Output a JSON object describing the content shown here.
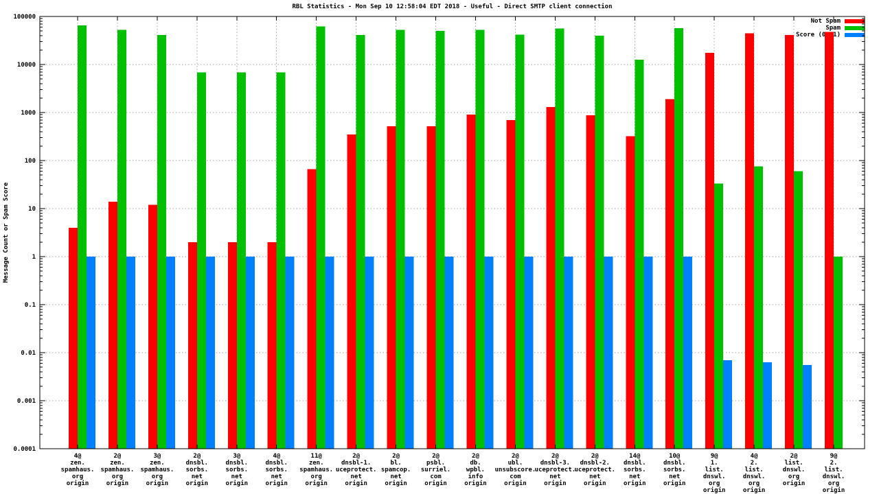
{
  "chart_data": {
    "type": "bar",
    "title": "RBL Statistics - Mon Sep 10 12:58:04 EDT 2018 - Useful - Direct SMTP client connection",
    "xlabel": "",
    "ylabel": "Message Count or Spam Score",
    "yscale": "log",
    "ylim": [
      0.0001,
      100000
    ],
    "ytick_labels": [
      "100000",
      "10000",
      "1000",
      "100",
      "10",
      "1",
      "0.1",
      "0.01",
      "0.001",
      "0.0001"
    ],
    "grid": true,
    "grid_style": "dotted",
    "legend_position": "top-right-inside",
    "categories": [
      [
        "4@",
        "zen.",
        "spamhaus.",
        "org",
        "origin"
      ],
      [
        "2@",
        "zen.",
        "spamhaus.",
        "org",
        "origin"
      ],
      [
        "3@",
        "zen.",
        "spamhaus.",
        "org",
        "origin"
      ],
      [
        "2@",
        "dnsbl.",
        "sorbs.",
        "net",
        "origin"
      ],
      [
        "3@",
        "dnsbl.",
        "sorbs.",
        "net",
        "origin"
      ],
      [
        "4@",
        "dnsbl.",
        "sorbs.",
        "net",
        "origin"
      ],
      [
        "11@",
        "zen.",
        "spamhaus.",
        "org",
        "origin"
      ],
      [
        "2@",
        "dnsbl-1.",
        "uceprotect.",
        "net",
        "origin"
      ],
      [
        "2@",
        "bl.",
        "spamcop.",
        "net",
        "origin"
      ],
      [
        "2@",
        "psbl.",
        "surriel.",
        "com",
        "origin"
      ],
      [
        "2@",
        "db.",
        "wpbl.",
        "info",
        "origin"
      ],
      [
        "2@",
        "ubl.",
        "unsubscore.",
        "com",
        "origin"
      ],
      [
        "2@",
        "dnsbl-3.",
        "uceprotect.",
        "net",
        "origin"
      ],
      [
        "2@",
        "dnsbl-2.",
        "uceprotect.",
        "net",
        "origin"
      ],
      [
        "14@",
        "dnsbl.",
        "sorbs.",
        "net",
        "origin"
      ],
      [
        "10@",
        "dnsbl.",
        "sorbs.",
        "net",
        "origin"
      ],
      [
        "9@",
        "1.",
        "list.",
        "dnswl.",
        "org",
        "origin"
      ],
      [
        "4@",
        "2.",
        "list.",
        "dnswl.",
        "org",
        "origin"
      ],
      [
        "2@",
        "list.",
        "dnswl.",
        "org",
        "origin"
      ],
      [
        "9@",
        "2.",
        "list.",
        "dnswl.",
        "org",
        "origin"
      ]
    ],
    "series": [
      {
        "name": "Not Spam",
        "color": "#ff0000",
        "values": [
          4,
          14,
          12,
          2,
          2,
          2,
          66,
          350,
          520,
          520,
          900,
          700,
          1300,
          880,
          320,
          1900,
          17500,
          45000,
          41000,
          48000
        ]
      },
      {
        "name": "Spam",
        "color": "#00c000",
        "values": [
          65000,
          53000,
          41000,
          6800,
          6800,
          6800,
          62000,
          41000,
          53000,
          50000,
          53000,
          42000,
          56000,
          40000,
          12500,
          57000,
          33,
          75,
          60,
          1
        ]
      },
      {
        "name": "Score (0..1)",
        "color": "#0080ff",
        "values": [
          1,
          1,
          1,
          1,
          1,
          1,
          1,
          1,
          1,
          1,
          1,
          1,
          1,
          1,
          1,
          1,
          0.007,
          0.0063,
          0.0055,
          null
        ]
      }
    ],
    "colors": {
      "frame": "#000000",
      "grid": "#a0a0a0",
      "background": "#ffffff"
    }
  }
}
